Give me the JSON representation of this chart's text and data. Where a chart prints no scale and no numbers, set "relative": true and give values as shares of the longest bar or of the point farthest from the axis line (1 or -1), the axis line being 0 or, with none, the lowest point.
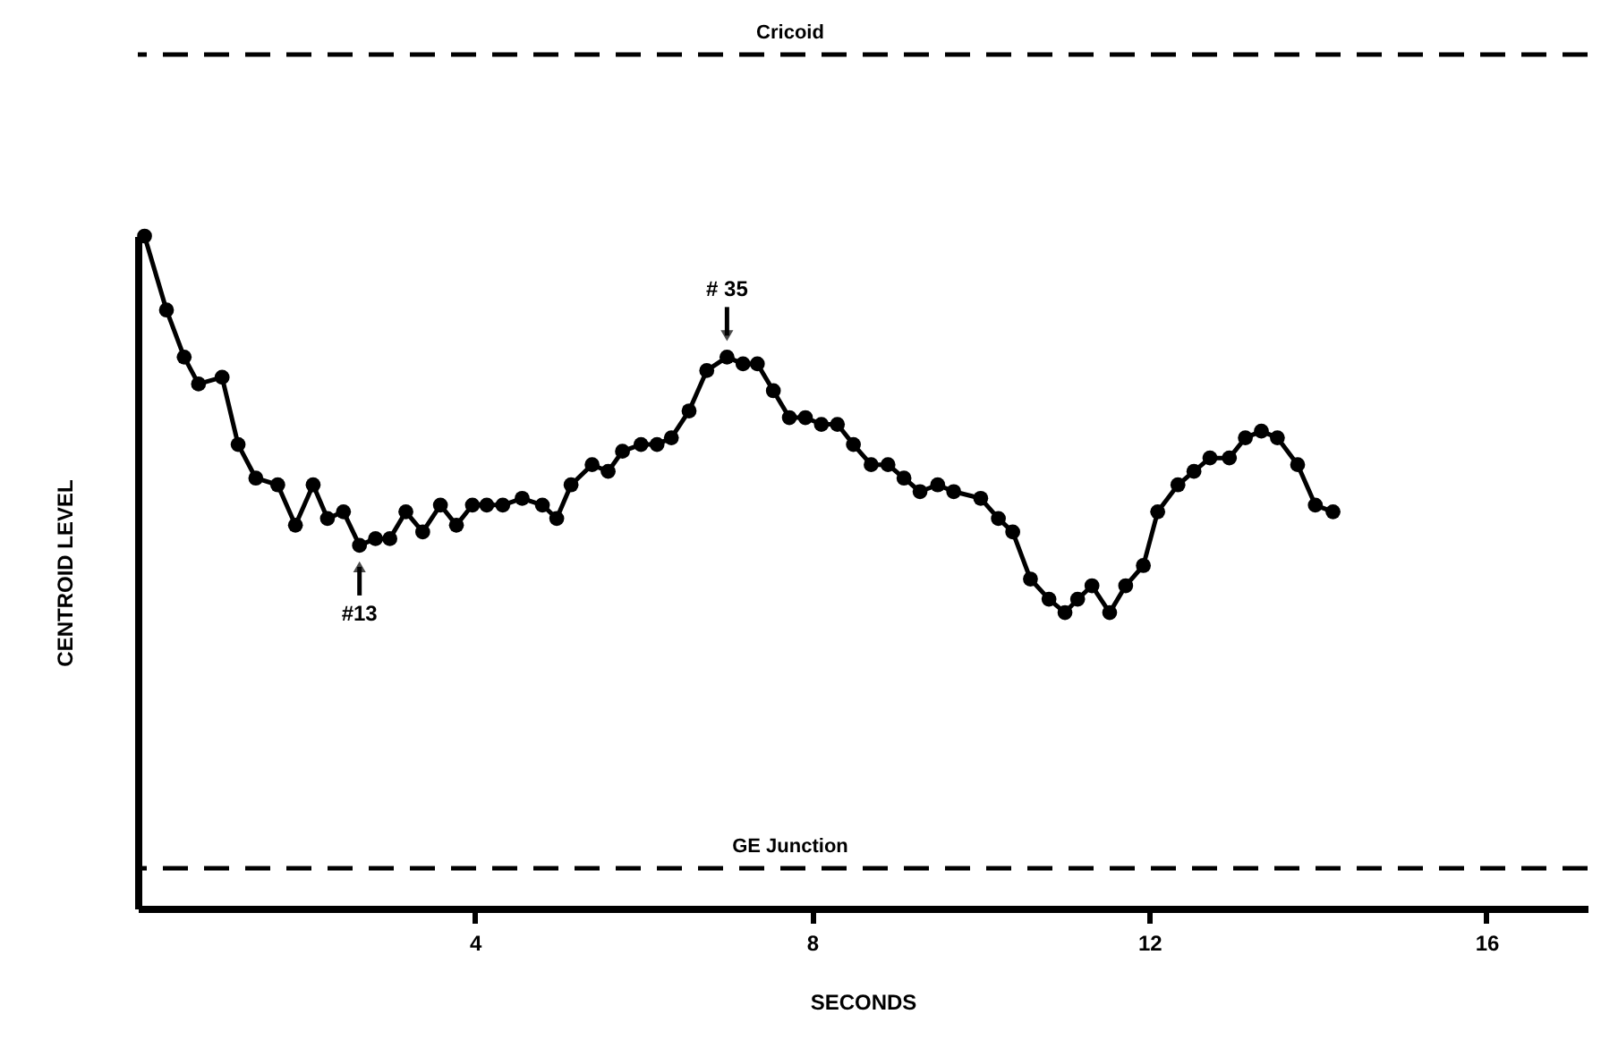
{
  "chart_data": {
    "type": "line",
    "relative": true,
    "xlabel": "SECONDS",
    "ylabel": "CENTROID  LEVEL",
    "x": [
      0.08,
      0.34,
      0.55,
      0.72,
      1.0,
      1.19,
      1.4,
      1.66,
      1.87,
      2.08,
      2.25,
      2.44,
      2.63,
      2.82,
      2.99,
      3.18,
      3.38,
      3.59,
      3.78,
      3.97,
      4.14,
      4.33,
      4.56,
      4.8,
      4.97,
      5.14,
      5.39,
      5.58,
      5.75,
      5.97,
      6.16,
      6.33,
      6.54,
      6.75,
      6.99,
      7.18,
      7.35,
      7.54,
      7.73,
      7.92,
      8.11,
      8.3,
      8.49,
      8.7,
      8.9,
      9.09,
      9.28,
      9.49,
      9.68,
      10.0,
      10.21,
      10.38,
      10.59,
      10.81,
      11.0,
      11.15,
      11.32,
      11.53,
      11.72,
      11.93,
      12.1,
      12.34,
      12.53,
      12.72,
      12.95,
      13.14,
      13.33,
      13.52,
      13.76,
      13.97,
      14.18
    ],
    "series": [
      {
        "color": "#000000",
        "values": [
          1.0,
          0.89,
          0.82,
          0.78,
          0.79,
          0.69,
          0.64,
          0.63,
          0.57,
          0.63,
          0.58,
          0.59,
          0.54,
          0.55,
          0.55,
          0.59,
          0.56,
          0.6,
          0.57,
          0.6,
          0.6,
          0.6,
          0.61,
          0.6,
          0.58,
          0.63,
          0.66,
          0.65,
          0.68,
          0.69,
          0.69,
          0.7,
          0.74,
          0.8,
          0.82,
          0.81,
          0.81,
          0.77,
          0.73,
          0.73,
          0.72,
          0.72,
          0.69,
          0.66,
          0.66,
          0.64,
          0.62,
          0.63,
          0.62,
          0.61,
          0.58,
          0.56,
          0.49,
          0.46,
          0.44,
          0.46,
          0.48,
          0.44,
          0.48,
          0.51,
          0.59,
          0.63,
          0.65,
          0.67,
          0.67,
          0.7,
          0.71,
          0.7,
          0.66,
          0.6,
          0.59
        ]
      }
    ],
    "xlim": [
      0,
      17.2
    ],
    "xticks": [
      4,
      8,
      12,
      16
    ],
    "marker": "circle",
    "line_style": "solid",
    "ref_lines": [
      {
        "axis": "y",
        "value": 1.27,
        "label": "Cricoid",
        "line_style": "dashed",
        "color": "#000000"
      },
      {
        "axis": "y",
        "value": 0.06,
        "label": "GE  Junction",
        "line_style": "dashed",
        "color": "#000000"
      }
    ],
    "annotations": [
      {
        "text": "#13",
        "x": 2.63,
        "y": 0.54
      },
      {
        "text": "# 35",
        "x": 6.99,
        "y": 0.82
      }
    ]
  }
}
